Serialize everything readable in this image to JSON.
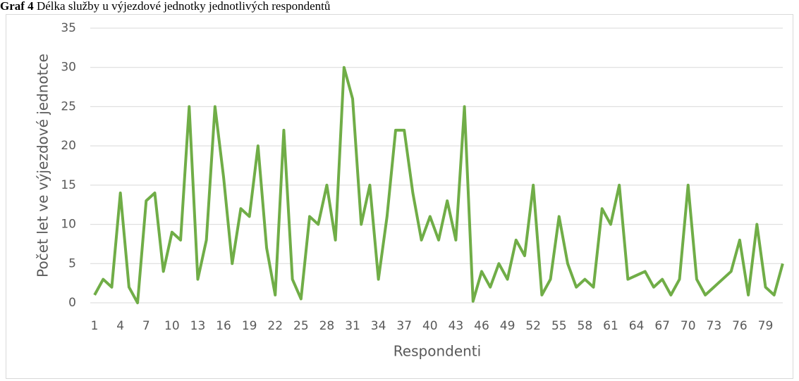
{
  "chart_data": {
    "type": "line",
    "title_label": "Graf 4",
    "title": "Délka služby u výjezdové jednotky jednotlivých respondentů",
    "x_label": "Respondenti",
    "y_label": "Počet let ve výjezdové jednotce",
    "categories": [
      1,
      null,
      null,
      4,
      null,
      null,
      7,
      null,
      null,
      10,
      null,
      null,
      13,
      null,
      null,
      16,
      null,
      null,
      19,
      null,
      null,
      22,
      null,
      null,
      25,
      null,
      null,
      28,
      null,
      null,
      31,
      null,
      null,
      34,
      null,
      null,
      37,
      null,
      null,
      40,
      null,
      null,
      43,
      null,
      null,
      46,
      null,
      null,
      49,
      null,
      null,
      52,
      null,
      null,
      55,
      null,
      null,
      58,
      null,
      null,
      61,
      null,
      null,
      64,
      null,
      null,
      67,
      null,
      null,
      70,
      null,
      null,
      73,
      null,
      null,
      76,
      null,
      null,
      79,
      null,
      null
    ],
    "series": [
      {
        "name": "Počet let",
        "color": "#70ad47",
        "values": [
          1,
          3,
          2,
          14,
          2,
          0,
          13,
          14,
          4,
          9,
          8,
          25,
          3,
          8,
          25,
          16,
          5,
          12,
          11,
          20,
          7,
          1,
          22,
          3,
          0.5,
          11,
          10,
          15,
          8,
          30,
          26,
          10,
          15,
          3,
          11,
          22,
          22,
          14,
          8,
          11,
          8,
          13,
          8,
          25,
          0.2,
          4,
          2,
          5,
          3,
          8,
          6,
          15,
          1,
          3,
          11,
          5,
          2,
          3,
          2,
          12,
          10,
          15,
          3,
          3.5,
          4,
          2,
          3,
          1,
          3,
          15,
          3,
          1,
          2,
          3,
          4,
          8,
          1,
          10,
          2,
          1,
          5
        ]
      }
    ],
    "ylim": [
      0,
      35
    ],
    "yticks": [
      0,
      5,
      10,
      15,
      20,
      25,
      30,
      35
    ],
    "grid": true
  }
}
